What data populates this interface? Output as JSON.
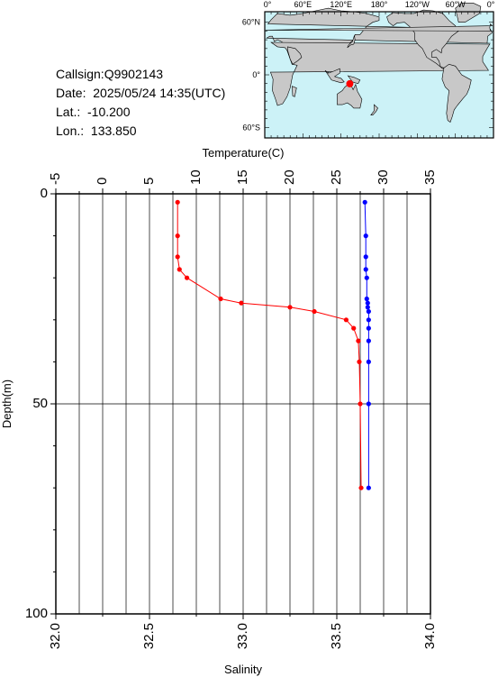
{
  "station": {
    "callsign": "Callsign:Q9902143",
    "date": "Date:  2025/05/24 14:35(UTC)",
    "lat": "Lat.:  -10.200",
    "lon": "Lon.:  133.850"
  },
  "map": {
    "lon_labels": [
      "0°",
      "60°E",
      "120°E",
      "180°",
      "120°W",
      "60°W",
      "0°"
    ],
    "lat_labels": [
      "60°N",
      "0°",
      "60°S"
    ],
    "marker": {
      "lon": 133.85,
      "lat": -10.2
    },
    "colors": {
      "ocean": "#ccf2f7",
      "land": "#c8c8c8",
      "marker": "#ff0000"
    }
  },
  "chart_data": {
    "type": "line",
    "title": "",
    "top_axis": {
      "label": "Temperature(C)",
      "range": [
        -5,
        35
      ],
      "ticks": [
        -5,
        0,
        5,
        10,
        15,
        20,
        25,
        30,
        35
      ]
    },
    "bottom_axis": {
      "label": "Salinity",
      "range": [
        32.0,
        34.0
      ],
      "ticks": [
        "32.0",
        "32.5",
        "33.0",
        "33.5",
        "34.0"
      ]
    },
    "y_axis": {
      "label": "Depth(m)",
      "range": [
        0,
        100
      ],
      "inverted": true,
      "ticks": [
        0,
        50,
        100
      ]
    },
    "grid": true,
    "series": [
      {
        "name": "",
        "variable": "temperature",
        "axis": "top",
        "color": "#ff0000",
        "points": [
          [
            8.0,
            2
          ],
          [
            8.0,
            10
          ],
          [
            8.0,
            15
          ],
          [
            8.2,
            18
          ],
          [
            9.0,
            20
          ],
          [
            12.6,
            25
          ],
          [
            14.8,
            26
          ],
          [
            20.0,
            27
          ],
          [
            22.6,
            28
          ],
          [
            26.0,
            30
          ],
          [
            26.8,
            32
          ],
          [
            27.3,
            35
          ],
          [
            27.4,
            40
          ],
          [
            27.5,
            50
          ],
          [
            27.6,
            70
          ]
        ]
      },
      {
        "name": "",
        "variable": "salinity",
        "axis": "bottom",
        "color": "#0000ff",
        "points": [
          [
            33.65,
            2
          ],
          [
            33.655,
            10
          ],
          [
            33.655,
            15
          ],
          [
            33.655,
            18
          ],
          [
            33.66,
            20
          ],
          [
            33.66,
            25
          ],
          [
            33.665,
            26
          ],
          [
            33.665,
            27
          ],
          [
            33.67,
            28
          ],
          [
            33.67,
            30
          ],
          [
            33.67,
            32
          ],
          [
            33.67,
            35
          ],
          [
            33.67,
            40
          ],
          [
            33.67,
            50
          ],
          [
            33.67,
            70
          ]
        ]
      }
    ]
  }
}
